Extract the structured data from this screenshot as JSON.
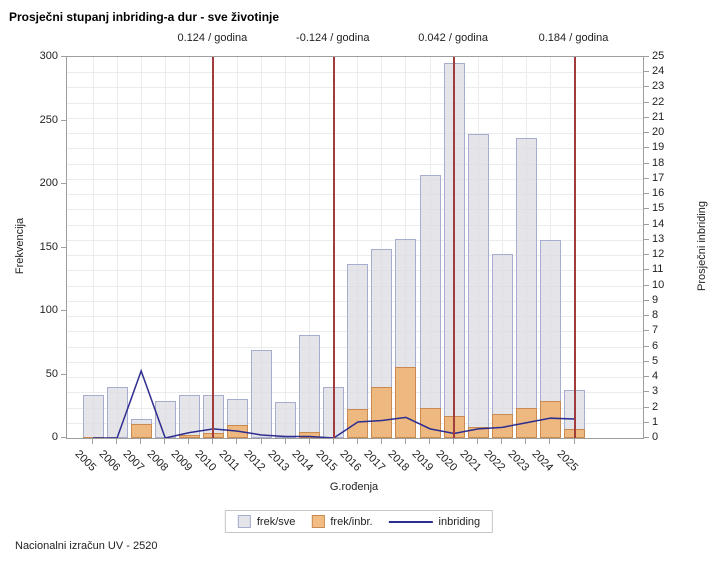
{
  "title": "Prosječni stupanj inbriding-a dur - sve životinje",
  "footer": "Nacionalni izračun UV - 2520",
  "annotations": [
    {
      "text": "0.124 / godina",
      "at_year": "2010"
    },
    {
      "text": "-0.124 / godina",
      "at_year": "2015"
    },
    {
      "text": "0.042 / godina",
      "at_year": "2020"
    },
    {
      "text": "0.184 / godina",
      "at_year": "2025"
    }
  ],
  "legend": {
    "items": [
      {
        "label": "frek/sve",
        "swatch": "bar-gray"
      },
      {
        "label": "frek/inbr.",
        "swatch": "bar-orange"
      },
      {
        "label": "inbriding",
        "swatch": "line-navy"
      }
    ]
  },
  "colors": {
    "bar_all_fill": "rgba(219,219,224,0.72)",
    "bar_all_border": "#a6adce",
    "bar_inbr_fill": "rgba(240,177,110,0.85)",
    "bar_inbr_border": "#c98a52",
    "line": "#2d2d8f",
    "refline": "#a03c3c",
    "grid": "#ebebeb",
    "axis": "#9e9e9e"
  },
  "chart_data": {
    "type": "bar",
    "title": "Prosječni stupanj inbriding-a dur - sve životinje",
    "xlabel": "G.rođenja",
    "categories": [
      "2005",
      "2006",
      "2007",
      "2008",
      "2009",
      "2010",
      "2011",
      "2012",
      "2013",
      "2014",
      "2015",
      "2016",
      "2017",
      "2018",
      "2019",
      "2020",
      "2021",
      "2022",
      "2023",
      "2024",
      "2025"
    ],
    "series": [
      {
        "name": "frek/sve",
        "type": "bar",
        "axis": "left",
        "values": [
          34,
          40,
          15,
          29,
          34,
          34,
          31,
          69,
          28,
          81,
          40,
          137,
          149,
          157,
          207,
          295,
          239,
          145,
          236,
          156,
          38
        ]
      },
      {
        "name": "frek/inbr.",
        "type": "bar",
        "axis": "left",
        "values": [
          1,
          0,
          11,
          0,
          2,
          4,
          10,
          0,
          0,
          5,
          0,
          23,
          40,
          56,
          24,
          17,
          9,
          19,
          24,
          29,
          7
        ]
      },
      {
        "name": "inbriding",
        "type": "line",
        "axis": "right",
        "values": [
          0,
          0,
          4.4,
          0,
          0.35,
          0.6,
          0.45,
          0.2,
          0.1,
          0.1,
          0,
          1.05,
          1.15,
          1.35,
          0.6,
          0.3,
          0.6,
          0.7,
          1.0,
          1.3,
          1.25
        ]
      }
    ],
    "left_axis": {
      "label": "Frekvencija",
      "min": 0,
      "max": 300,
      "tick_step": 50
    },
    "right_axis": {
      "label": "Prosječni inbriding",
      "min": 0,
      "max": 25,
      "tick_step": 1
    },
    "reference_lines": {
      "years": [
        "2010",
        "2015",
        "2020",
        "2025"
      ]
    },
    "grid": "on",
    "legend_position": "bottom"
  }
}
